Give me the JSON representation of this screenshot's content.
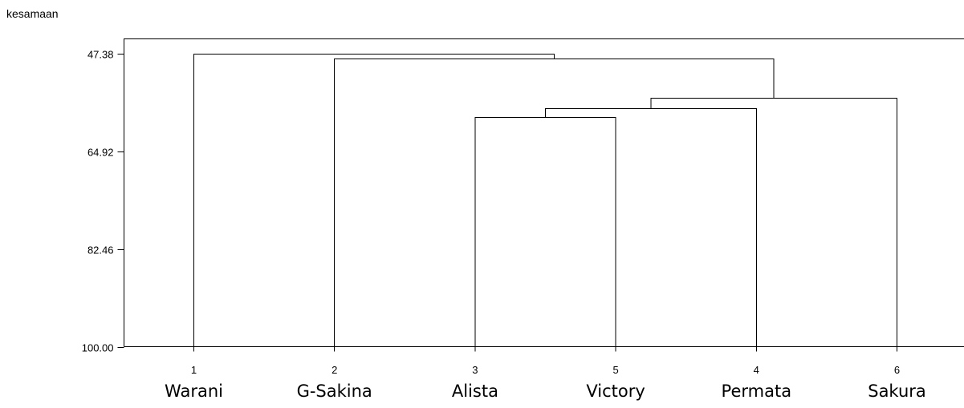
{
  "chart_data": {
    "type": "dendrogram",
    "ylabel": "kesamaan",
    "yticks": [
      47.38,
      64.92,
      82.46,
      100.0
    ],
    "ytick_labels": [
      "47.38",
      "64.92",
      "82.46",
      "100.00"
    ],
    "ylim": [
      44.6,
      100.0
    ],
    "leaves": [
      {
        "id": "1",
        "name": "Warani"
      },
      {
        "id": "2",
        "name": "G-Sakina"
      },
      {
        "id": "3",
        "name": "Alista"
      },
      {
        "id": "5",
        "name": "Victory"
      },
      {
        "id": "4",
        "name": "Permata"
      },
      {
        "id": "6",
        "name": "Sakura"
      }
    ],
    "merges": [
      {
        "left": "3",
        "right": "5",
        "similarity": 58.7
      },
      {
        "left": "3,5",
        "right": "4",
        "similarity": 57.1
      },
      {
        "left": "3,5,4",
        "right": "6",
        "similarity": 55.3
      },
      {
        "left": "2",
        "right": "3,5,4,6",
        "similarity": 48.2
      },
      {
        "left": "1",
        "right": "2,3,5,4,6",
        "similarity": 47.38
      }
    ]
  }
}
